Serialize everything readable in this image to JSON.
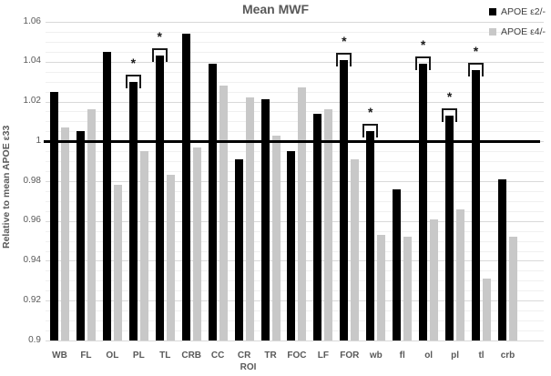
{
  "title": "Mean MWF",
  "x_axis_title": "ROI",
  "y_axis_title": "Relative to mean APOE ε33",
  "legend": {
    "position": "top-right",
    "items": [
      {
        "label": "APOE ε2/-",
        "color": "#000000"
      },
      {
        "label": "APOE ε4/-",
        "color": "#c8c8c8"
      }
    ]
  },
  "chart_data": {
    "type": "bar",
    "title": "Mean MWF",
    "xlabel": "ROI",
    "ylabel": "Relative to mean APOE ε33",
    "ylim": [
      0.9,
      1.06
    ],
    "baseline": 1.0,
    "grid": true,
    "minor_grid_interval": 0.005,
    "major_grid_interval": 0.02,
    "legend_position": "top-right",
    "yticks": [
      {
        "value": 0.9,
        "label": "0.9"
      },
      {
        "value": 0.92,
        "label": "0.92"
      },
      {
        "value": 0.94,
        "label": "0.94"
      },
      {
        "value": 0.96,
        "label": "0.96"
      },
      {
        "value": 0.98,
        "label": "0.98"
      },
      {
        "value": 1.0,
        "label": "1"
      },
      {
        "value": 1.02,
        "label": "1.02"
      },
      {
        "value": 1.04,
        "label": "1.04"
      },
      {
        "value": 1.06,
        "label": "1.06"
      }
    ],
    "categories": [
      "WB",
      "FL",
      "OL",
      "PL",
      "TL",
      "CRB",
      "CC",
      "CR",
      "TR",
      "FOC",
      "LF",
      "FOR",
      "wb",
      "fl",
      "ol",
      "pl",
      "tl",
      "crb"
    ],
    "series": [
      {
        "name": "APOE ε2/-",
        "color": "#000000",
        "values": [
          1.025,
          1.005,
          1.045,
          1.03,
          1.043,
          1.054,
          1.039,
          0.991,
          1.021,
          0.995,
          1.014,
          1.041,
          1.005,
          0.976,
          1.039,
          1.013,
          1.036,
          0.981
        ]
      },
      {
        "name": "APOE ε4/-",
        "color": "#c8c8c8",
        "values": [
          1.007,
          1.016,
          0.978,
          0.995,
          0.983,
          0.997,
          1.028,
          1.022,
          1.003,
          1.027,
          1.016,
          0.991,
          0.953,
          0.952,
          0.961,
          0.966,
          0.931,
          0.952
        ]
      }
    ],
    "significant": [
      "PL",
      "TL",
      "FOR",
      "wb",
      "ol",
      "pl",
      "tl"
    ],
    "significance_marker": "*",
    "colors": {
      "major_grid": "#d9d9d9",
      "minor_grid": "#f0f0f0",
      "baseline": "#000000",
      "text": "#595959"
    }
  }
}
